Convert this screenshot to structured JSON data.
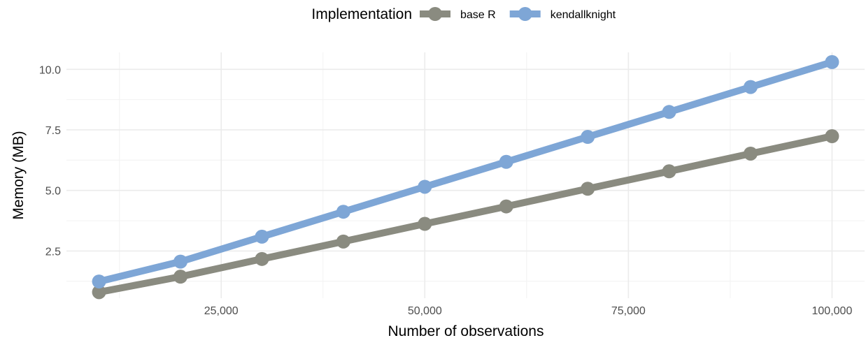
{
  "chart_data": {
    "type": "line",
    "title": "",
    "xlabel": "Number of observations",
    "ylabel": "Memory (MB)",
    "legend": {
      "title": "Implementation",
      "placement": "top"
    },
    "x": [
      10000,
      20000,
      30000,
      40000,
      50000,
      60000,
      70000,
      80000,
      90000,
      100000
    ],
    "xlim": [
      6000,
      104000
    ],
    "ylim": [
      0.55,
      10.7
    ],
    "x_ticks": [
      25000,
      50000,
      75000,
      100000
    ],
    "x_tick_labels": [
      "25,000",
      "50,000",
      "75,000",
      "100,000"
    ],
    "x_minor_ticks": [
      12500,
      37500,
      62500,
      87500
    ],
    "y_ticks": [
      2.5,
      5.0,
      7.5,
      10.0
    ],
    "y_tick_labels": [
      "2.5",
      "5.0",
      "7.5",
      "10.0"
    ],
    "y_minor_ticks": [
      1.25,
      3.75,
      6.25,
      8.75
    ],
    "grid": true,
    "series": [
      {
        "name": "base R",
        "color": "#8a8b80",
        "values": [
          0.8,
          1.44,
          2.17,
          2.89,
          3.62,
          4.34,
          5.07,
          5.79,
          6.52,
          7.24
        ]
      },
      {
        "name": "kendallknight",
        "color": "#7ea6d6",
        "values": [
          1.24,
          2.06,
          3.09,
          4.12,
          5.15,
          6.18,
          7.21,
          8.24,
          9.27,
          10.3
        ]
      }
    ]
  }
}
